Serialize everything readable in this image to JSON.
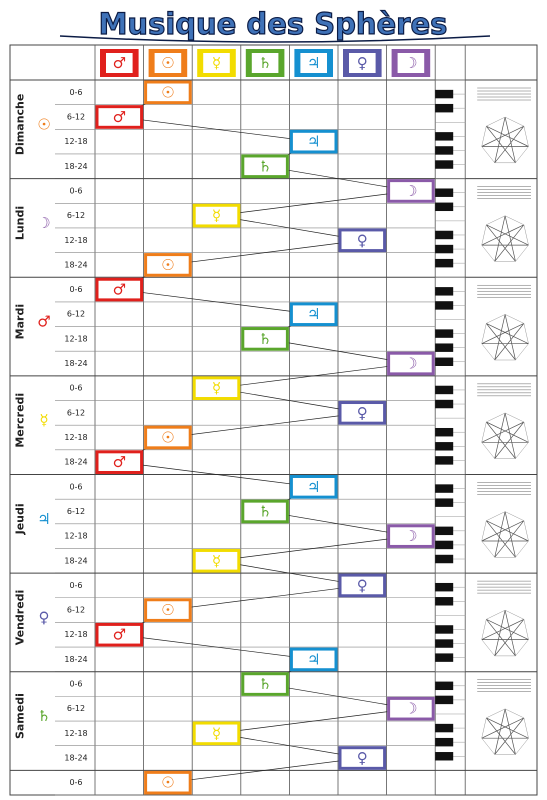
{
  "title": "Musique des Sphères",
  "planets": [
    {
      "symbol": "♂",
      "color": "#e0201c"
    },
    {
      "symbol": "☉",
      "color": "#ef7d1a"
    },
    {
      "symbol": "☿",
      "color": "#f2dc00"
    },
    {
      "symbol": "♄",
      "color": "#5aa62c"
    },
    {
      "symbol": "♃",
      "color": "#1590d0"
    },
    {
      "symbol": "♀",
      "color": "#5a5aa8"
    },
    {
      "symbol": "☽",
      "color": "#8a5aa8"
    }
  ],
  "days": [
    {
      "name": "Dimanche",
      "symbol": "☉",
      "slots": [
        {
          "time": "0-6",
          "planet": "☉"
        },
        {
          "time": "6-12",
          "planet": "♂"
        },
        {
          "time": "12-18",
          "planet": "♃"
        },
        {
          "time": "18-24",
          "planet": "♄"
        }
      ]
    },
    {
      "name": "Lundi",
      "symbol": "☽",
      "slots": [
        {
          "time": "0-6",
          "planet": "☽"
        },
        {
          "time": "6-12",
          "planet": "☿"
        },
        {
          "time": "12-18",
          "planet": "♀"
        },
        {
          "time": "18-24",
          "planet": "☉"
        }
      ]
    },
    {
      "name": "Mardi",
      "symbol": "♂",
      "slots": [
        {
          "time": "0-6",
          "planet": "♂"
        },
        {
          "time": "6-12",
          "planet": "♃"
        },
        {
          "time": "12-18",
          "planet": "♄"
        },
        {
          "time": "18-24",
          "planet": "☽"
        }
      ]
    },
    {
      "name": "Mercredi",
      "symbol": "☿",
      "slots": [
        {
          "time": "0-6",
          "planet": "☿"
        },
        {
          "time": "6-12",
          "planet": "♀"
        },
        {
          "time": "12-18",
          "planet": "☉"
        },
        {
          "time": "18-24",
          "planet": "♂"
        }
      ]
    },
    {
      "name": "Jeudi",
      "symbol": "♃",
      "slots": [
        {
          "time": "0-6",
          "planet": "♃"
        },
        {
          "time": "6-12",
          "planet": "♄"
        },
        {
          "time": "12-18",
          "planet": "☽"
        },
        {
          "time": "18-24",
          "planet": "☿"
        }
      ]
    },
    {
      "name": "Vendredi",
      "symbol": "♀",
      "slots": [
        {
          "time": "0-6",
          "planet": "♀"
        },
        {
          "time": "6-12",
          "planet": "☉"
        },
        {
          "time": "12-18",
          "planet": "♂"
        },
        {
          "time": "18-24",
          "planet": "♃"
        }
      ]
    },
    {
      "name": "Samedi",
      "symbol": "♄",
      "slots": [
        {
          "time": "0-6",
          "planet": "♄"
        },
        {
          "time": "6-12",
          "planet": "☽"
        },
        {
          "time": "12-18",
          "planet": "☿"
        },
        {
          "time": "18-24",
          "planet": "♀"
        }
      ]
    }
  ],
  "final": {
    "time": "0-6",
    "planet": "☉"
  }
}
